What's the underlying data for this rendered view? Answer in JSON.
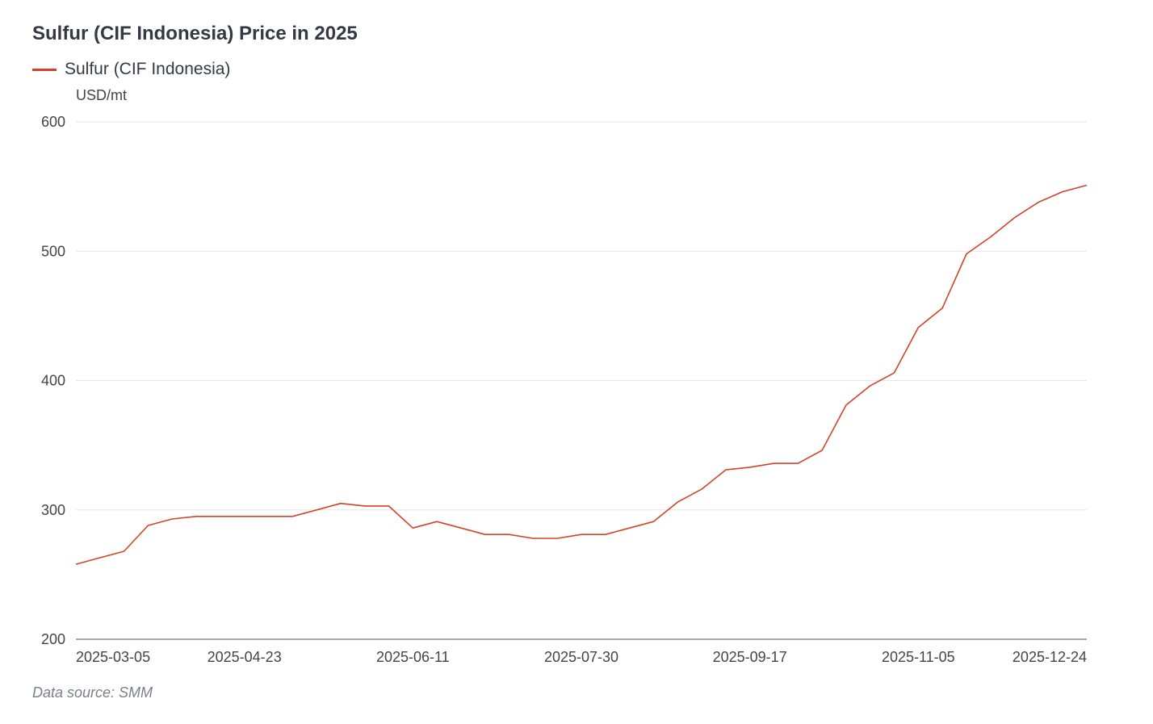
{
  "chart_data": {
    "type": "line",
    "title": "Sulfur (CIF Indonesia) Price in 2025",
    "ylabel": "USD/mt",
    "xlabel": "",
    "ylim": [
      200,
      600
    ],
    "y_ticks": [
      "600",
      "500",
      "400",
      "300",
      "200"
    ],
    "y_tick_values": [
      600,
      500,
      400,
      300,
      200
    ],
    "x_ticks": [
      "2025-03-05",
      "2025-04-23",
      "2025-06-11",
      "2025-07-30",
      "2025-09-17",
      "2025-11-05",
      "2025-12-24"
    ],
    "x_tick_index": [
      0,
      7,
      14,
      21,
      28,
      35,
      42
    ],
    "series": [
      {
        "name": "Sulfur (CIF Indonesia)",
        "color": "#d2432a",
        "values": [
          258,
          263,
          268,
          288,
          293,
          295,
          295,
          295,
          295,
          295,
          300,
          305,
          303,
          303,
          286,
          291,
          286,
          281,
          281,
          278,
          278,
          281,
          281,
          286,
          291,
          306,
          316,
          331,
          333,
          336,
          336,
          346,
          381,
          396,
          406,
          441,
          456,
          498,
          511,
          526,
          538,
          546,
          551
        ]
      }
    ]
  },
  "source": "Data source:  SMM"
}
